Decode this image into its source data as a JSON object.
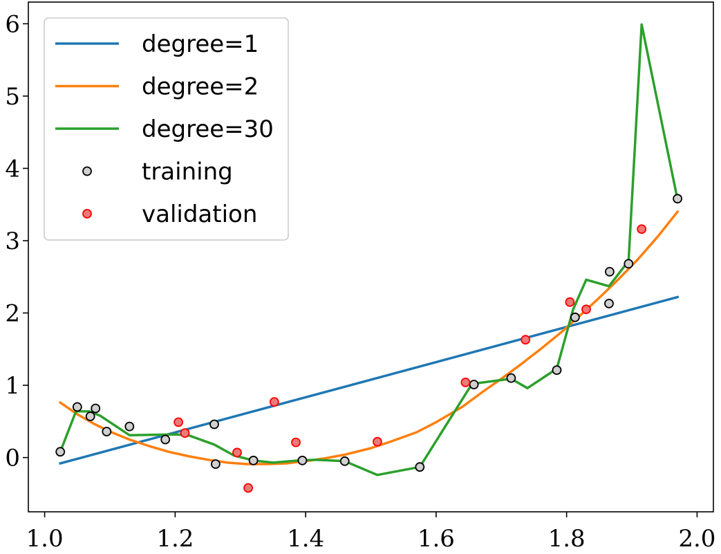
{
  "chart_data": {
    "type": "line",
    "title": "",
    "xlabel": "",
    "ylabel": "",
    "xlim": [
      0.975,
      2.025
    ],
    "ylim": [
      -0.75,
      6.3
    ],
    "xticks": [
      1.0,
      1.2,
      1.4,
      1.6,
      1.8,
      2.0
    ],
    "xtick_labels": [
      "1.0",
      "1.2",
      "1.4",
      "1.6",
      "1.8",
      "2.0"
    ],
    "yticks": [
      0,
      1,
      2,
      3,
      4,
      5,
      6
    ],
    "ytick_labels": [
      "0",
      "1",
      "2",
      "3",
      "4",
      "5",
      "6"
    ],
    "grid": false,
    "legend_position": "top-left",
    "series": [
      {
        "name": "degree=1",
        "kind": "line",
        "color": "#1f77b4",
        "x": [
          1.024,
          1.97
        ],
        "y": [
          -0.08,
          2.22
        ]
      },
      {
        "name": "degree=2",
        "kind": "line",
        "color": "#ff7f0e",
        "x": [
          1.024,
          1.05,
          1.075,
          1.1,
          1.13,
          1.16,
          1.19,
          1.22,
          1.25,
          1.28,
          1.31,
          1.34,
          1.37,
          1.4,
          1.43,
          1.46,
          1.5,
          1.53,
          1.57,
          1.6,
          1.64,
          1.67,
          1.7,
          1.73,
          1.76,
          1.79,
          1.82,
          1.85,
          1.88,
          1.91,
          1.94,
          1.97
        ],
        "y": [
          0.76,
          0.6,
          0.47,
          0.36,
          0.25,
          0.16,
          0.08,
          0.02,
          -0.03,
          -0.07,
          -0.09,
          -0.09,
          -0.08,
          -0.05,
          -0.01,
          0.04,
          0.13,
          0.22,
          0.35,
          0.49,
          0.7,
          0.9,
          1.09,
          1.29,
          1.5,
          1.72,
          1.96,
          2.21,
          2.47,
          2.75,
          3.06,
          3.4
        ]
      },
      {
        "name": "degree=30",
        "kind": "line",
        "color": "#2ca02c",
        "x": [
          1.024,
          1.048,
          1.068,
          1.085,
          1.13,
          1.2,
          1.22,
          1.26,
          1.29,
          1.32,
          1.35,
          1.39,
          1.415,
          1.46,
          1.51,
          1.575,
          1.655,
          1.715,
          1.74,
          1.785,
          1.81,
          1.83,
          1.865,
          1.895,
          1.915,
          1.97
        ],
        "y": [
          0.08,
          0.64,
          0.64,
          0.58,
          0.31,
          0.32,
          0.31,
          0.18,
          0.03,
          -0.04,
          -0.07,
          -0.04,
          -0.03,
          -0.05,
          -0.24,
          -0.13,
          1.02,
          1.09,
          0.96,
          1.23,
          2.05,
          2.46,
          2.37,
          2.72,
          5.99,
          3.57
        ]
      },
      {
        "name": "training",
        "kind": "scatter",
        "fill": "#d0d0d0",
        "edge": "#000000",
        "x": [
          1.024,
          1.05,
          1.07,
          1.078,
          1.095,
          1.13,
          1.185,
          1.26,
          1.262,
          1.32,
          1.395,
          1.46,
          1.575,
          1.658,
          1.715,
          1.785,
          1.813,
          1.865,
          1.866,
          1.895,
          1.97
        ],
        "y": [
          0.08,
          0.7,
          0.57,
          0.68,
          0.36,
          0.43,
          0.25,
          0.46,
          -0.09,
          -0.04,
          -0.04,
          -0.05,
          -0.13,
          1.01,
          1.1,
          1.21,
          1.94,
          2.13,
          2.57,
          2.68,
          3.58
        ]
      },
      {
        "name": "validation",
        "kind": "scatter",
        "fill": "#f07878",
        "edge": "#ff0000",
        "x": [
          1.205,
          1.215,
          1.295,
          1.312,
          1.352,
          1.385,
          1.51,
          1.645,
          1.737,
          1.805,
          1.83,
          1.915
        ],
        "y": [
          0.49,
          0.34,
          0.07,
          -0.42,
          0.77,
          0.21,
          0.22,
          1.04,
          1.63,
          2.15,
          2.05,
          3.16
        ]
      }
    ]
  }
}
